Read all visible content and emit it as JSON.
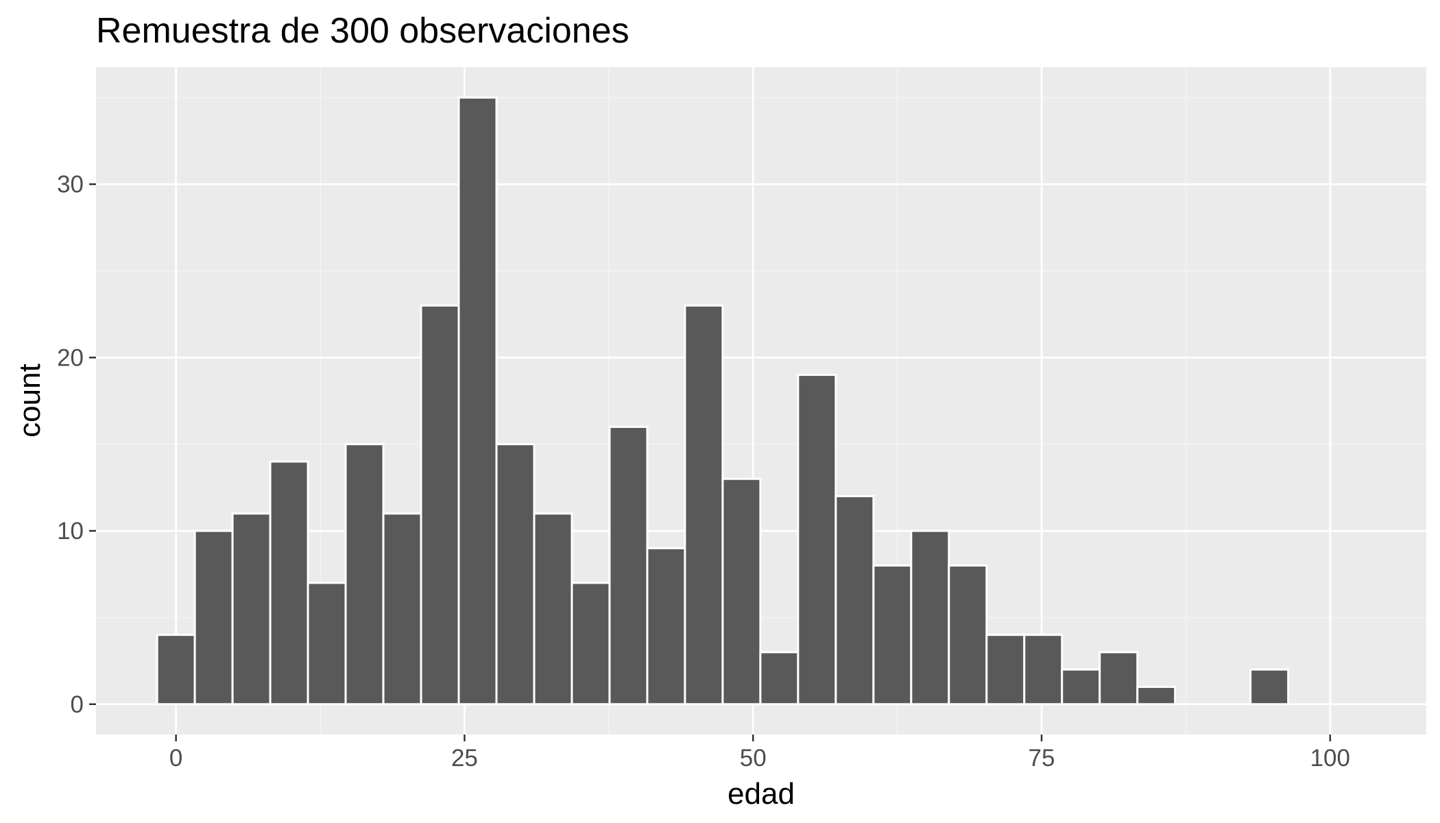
{
  "chart_data": {
    "type": "bar",
    "title": "Remuestra de 300 observaciones",
    "xlabel": "edad",
    "ylabel": "count",
    "bin_width": 3.267,
    "bins": [
      {
        "center": 0.0,
        "count": 4
      },
      {
        "center": 3.267,
        "count": 10
      },
      {
        "center": 6.533,
        "count": 11
      },
      {
        "center": 9.8,
        "count": 14
      },
      {
        "center": 13.067,
        "count": 7
      },
      {
        "center": 16.333,
        "count": 15
      },
      {
        "center": 19.6,
        "count": 11
      },
      {
        "center": 22.867,
        "count": 23
      },
      {
        "center": 26.133,
        "count": 35
      },
      {
        "center": 29.4,
        "count": 15
      },
      {
        "center": 32.667,
        "count": 11
      },
      {
        "center": 35.933,
        "count": 7
      },
      {
        "center": 39.2,
        "count": 16
      },
      {
        "center": 42.467,
        "count": 9
      },
      {
        "center": 45.733,
        "count": 23
      },
      {
        "center": 49.0,
        "count": 13
      },
      {
        "center": 52.267,
        "count": 3
      },
      {
        "center": 55.533,
        "count": 19
      },
      {
        "center": 58.8,
        "count": 12
      },
      {
        "center": 62.067,
        "count": 8
      },
      {
        "center": 65.333,
        "count": 10
      },
      {
        "center": 68.6,
        "count": 8
      },
      {
        "center": 71.867,
        "count": 4
      },
      {
        "center": 75.133,
        "count": 4
      },
      {
        "center": 78.4,
        "count": 2
      },
      {
        "center": 81.667,
        "count": 3
      },
      {
        "center": 84.933,
        "count": 1
      },
      {
        "center": 88.2,
        "count": 0
      },
      {
        "center": 91.467,
        "count": 0
      },
      {
        "center": 94.733,
        "count": 2
      }
    ],
    "x_ticks": [
      0,
      25,
      50,
      75,
      100
    ],
    "x_tick_labels": [
      "0",
      "25",
      "50",
      "75",
      "100"
    ],
    "y_ticks": [
      0,
      10,
      20,
      30
    ],
    "y_tick_labels": [
      "0",
      "10",
      "20",
      "30"
    ],
    "xlim": [
      -6.93,
      108.33
    ],
    "ylim": [
      -1.75,
      36.75
    ],
    "grid": true,
    "colors": {
      "panel_background": "#ebebeb",
      "grid_major": "#ffffff",
      "grid_minor": "#f5f5f5",
      "bar_fill": "#595959",
      "bar_outline": "#ffffff",
      "tick_label": "#4d4d4d",
      "tick_mark": "#333333"
    }
  }
}
